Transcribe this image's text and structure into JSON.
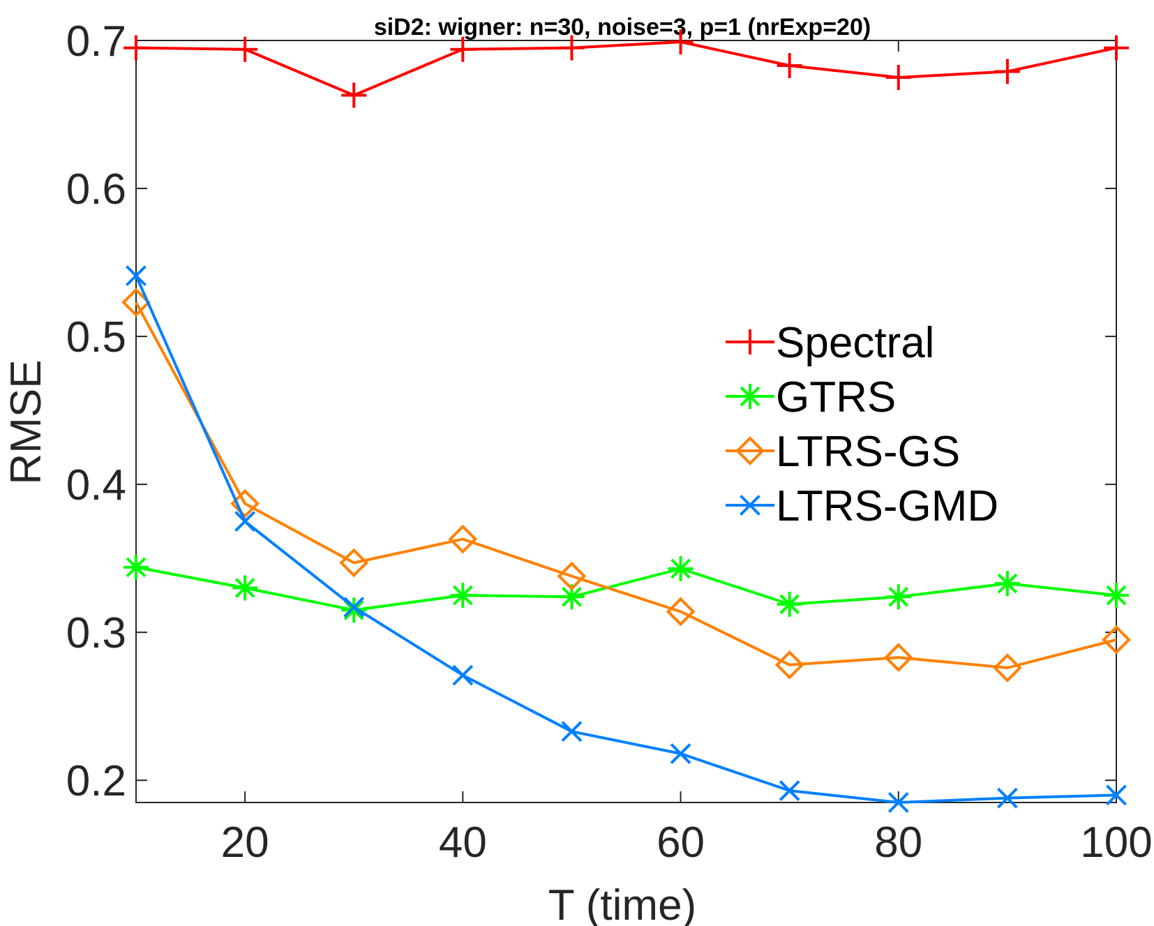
{
  "chart_data": {
    "type": "line",
    "title": "siD2: wigner: n=30, noise=3, p=1 (nrExp=20)",
    "xlabel": "T (time)",
    "ylabel": "RMSE",
    "xlim": [
      10,
      100
    ],
    "ylim": [
      0.185,
      0.7
    ],
    "xticks": [
      20,
      40,
      60,
      80,
      100
    ],
    "xtick_labels": [
      "20",
      "40",
      "60",
      "80",
      "100"
    ],
    "yticks": [
      0.2,
      0.3,
      0.4,
      0.5,
      0.6,
      0.7
    ],
    "ytick_labels": [
      "0.2",
      "0.3",
      "0.4",
      "0.5",
      "0.6",
      "0.7"
    ],
    "grid": false,
    "legend_position": "right-center",
    "x": [
      10,
      20,
      30,
      40,
      50,
      60,
      70,
      80,
      90,
      100
    ],
    "series": [
      {
        "name": "Spectral",
        "color": "#ff0000",
        "marker": "plus",
        "values": [
          0.695,
          0.694,
          0.663,
          0.694,
          0.695,
          0.699,
          0.683,
          0.675,
          0.679,
          0.695
        ]
      },
      {
        "name": "GTRS",
        "color": "#00ff00",
        "marker": "asterisk",
        "values": [
          0.344,
          0.33,
          0.315,
          0.325,
          0.324,
          0.343,
          0.319,
          0.324,
          0.333,
          0.325
        ]
      },
      {
        "name": "LTRS-GS",
        "color": "#ff8000",
        "marker": "diamond",
        "values": [
          0.523,
          0.387,
          0.347,
          0.363,
          0.338,
          0.314,
          0.278,
          0.283,
          0.276,
          0.295
        ]
      },
      {
        "name": "LTRS-GMD",
        "color": "#0080ff",
        "marker": "x",
        "values": [
          0.541,
          0.375,
          0.317,
          0.271,
          0.233,
          0.218,
          0.193,
          0.185,
          0.188,
          0.19
        ]
      }
    ]
  }
}
